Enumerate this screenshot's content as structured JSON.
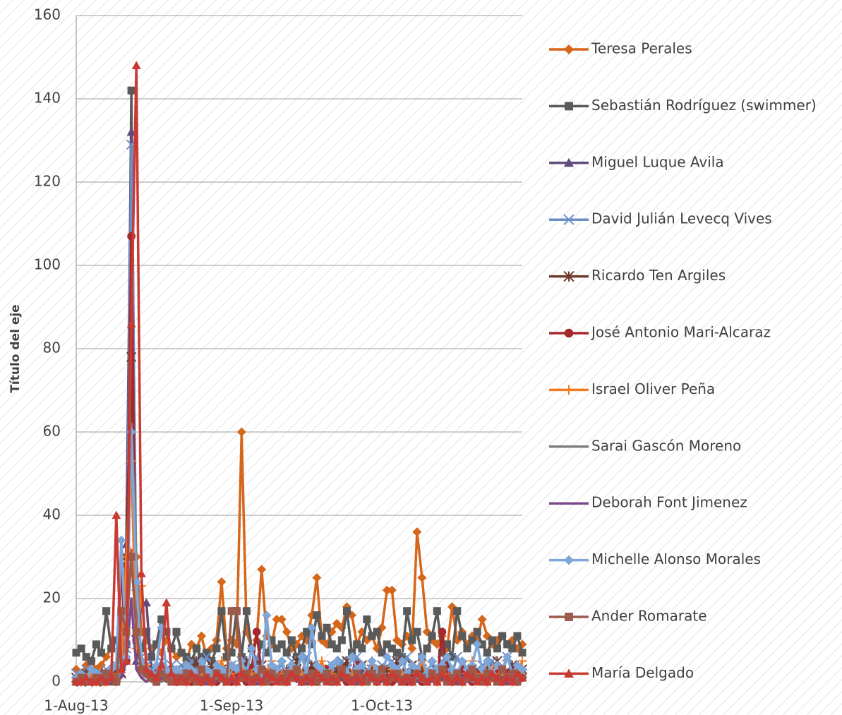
{
  "chart_data": {
    "type": "line",
    "y_label": "Título del eje",
    "x": [
      "2013-08-01",
      "2013-08-02",
      "2013-08-03",
      "2013-08-04",
      "2013-08-05",
      "2013-08-06",
      "2013-08-07",
      "2013-08-08",
      "2013-08-09",
      "2013-08-10",
      "2013-08-11",
      "2013-08-12",
      "2013-08-13",
      "2013-08-14",
      "2013-08-15",
      "2013-08-16",
      "2013-08-17",
      "2013-08-18",
      "2013-08-19",
      "2013-08-20",
      "2013-08-21",
      "2013-08-22",
      "2013-08-23",
      "2013-08-24",
      "2013-08-25",
      "2013-08-26",
      "2013-08-27",
      "2013-08-28",
      "2013-08-29",
      "2013-08-30",
      "2013-08-31",
      "2013-09-01",
      "2013-09-02",
      "2013-09-03",
      "2013-09-04",
      "2013-09-05",
      "2013-09-06",
      "2013-09-07",
      "2013-09-08",
      "2013-09-09",
      "2013-09-10",
      "2013-09-11",
      "2013-09-12",
      "2013-09-13",
      "2013-09-14",
      "2013-09-15",
      "2013-09-16",
      "2013-09-17",
      "2013-09-18",
      "2013-09-19",
      "2013-09-20",
      "2013-09-21",
      "2013-09-22",
      "2013-09-23",
      "2013-09-24",
      "2013-09-25",
      "2013-09-26",
      "2013-09-27",
      "2013-09-28",
      "2013-09-29",
      "2013-09-30",
      "2013-10-01",
      "2013-10-02",
      "2013-10-03",
      "2013-10-04",
      "2013-10-05",
      "2013-10-06",
      "2013-10-07",
      "2013-10-08",
      "2013-10-09",
      "2013-10-10",
      "2013-10-11",
      "2013-10-12",
      "2013-10-13",
      "2013-10-14",
      "2013-10-15",
      "2013-10-16",
      "2013-10-17",
      "2013-10-18",
      "2013-10-19",
      "2013-10-20",
      "2013-10-21",
      "2013-10-22",
      "2013-10-23",
      "2013-10-24",
      "2013-10-25",
      "2013-10-26",
      "2013-10-27",
      "2013-10-28",
      "2013-10-29"
    ],
    "xlim": [
      "2013-08-01",
      "2013-10-29"
    ],
    "xticks": [
      {
        "value": "2013-08-01",
        "label": "1-Aug-13"
      },
      {
        "value": "2013-09-01",
        "label": "1-Sep-13"
      },
      {
        "value": "2013-10-01",
        "label": "1-Oct-13"
      }
    ],
    "ylim": [
      0,
      160
    ],
    "yticks": [
      0,
      20,
      40,
      60,
      80,
      100,
      120,
      140,
      160
    ],
    "grid": true,
    "legend": "right",
    "series": [
      {
        "name": "Teresa Perales",
        "color": "#d5661a",
        "marker": "diamond",
        "values": [
          3,
          2,
          4,
          5,
          3,
          4,
          6,
          8,
          10,
          13,
          30,
          31,
          30,
          12,
          10,
          8,
          9,
          7,
          10,
          8,
          6,
          7,
          5,
          9,
          8,
          11,
          6,
          8,
          10,
          24,
          8,
          10,
          9,
          60,
          12,
          8,
          10,
          27,
          11,
          9,
          15,
          15,
          12,
          8,
          9,
          11,
          10,
          16,
          25,
          10,
          9,
          12,
          14,
          13,
          18,
          16,
          9,
          12,
          10,
          11,
          8,
          13,
          22,
          22,
          10,
          9,
          11,
          8,
          36,
          25,
          12,
          10,
          9,
          11,
          8,
          18,
          10,
          12,
          9,
          11,
          10,
          15,
          11,
          9,
          10,
          11,
          9,
          10,
          8,
          9
        ]
      },
      {
        "name": "Sebastián Rodríguez (swimmer)",
        "color": "#5a5a5a",
        "marker": "square",
        "values": [
          7,
          8,
          6,
          5,
          9,
          7,
          17,
          8,
          10,
          6,
          9,
          142,
          10,
          8,
          12,
          6,
          9,
          15,
          12,
          8,
          12,
          7,
          6,
          5,
          8,
          6,
          7,
          5,
          8,
          17,
          6,
          7,
          17,
          6,
          17,
          8,
          5,
          9,
          7,
          10,
          8,
          9,
          7,
          10,
          6,
          8,
          12,
          9,
          16,
          11,
          13,
          9,
          8,
          10,
          17,
          7,
          9,
          8,
          15,
          11,
          12,
          7,
          9,
          8,
          7,
          6,
          17,
          10,
          12,
          6,
          8,
          11,
          17,
          7,
          9,
          6,
          17,
          11,
          8,
          10,
          12,
          9,
          7,
          10,
          8,
          11,
          9,
          8,
          11,
          7
        ]
      },
      {
        "name": "Miguel Luque Avila",
        "color": "#604a7b",
        "marker": "triangle",
        "values": [
          0,
          1,
          0,
          1,
          0,
          2,
          1,
          0,
          1,
          2,
          33,
          132,
          5,
          19,
          19,
          3,
          2,
          1,
          2,
          1,
          1,
          2,
          0,
          1,
          3,
          1,
          0,
          2,
          1,
          1,
          1,
          2,
          0,
          1,
          3,
          1,
          0,
          2,
          1,
          1,
          1,
          2,
          0,
          1,
          3,
          1,
          0,
          2,
          1,
          1,
          1,
          2,
          0,
          1,
          3,
          1,
          0,
          2,
          1,
          1,
          1,
          2,
          0,
          1,
          3,
          1,
          0,
          2,
          1,
          1,
          1,
          2,
          0,
          1,
          3,
          1,
          0,
          2,
          1,
          1,
          1,
          2,
          0,
          1,
          3,
          1,
          0,
          2,
          1,
          1
        ]
      },
      {
        "name": "David Julián Levecq Vives",
        "color": "#6a8dc4",
        "marker": "x",
        "values": [
          2,
          1,
          3,
          2,
          1,
          2,
          3,
          2,
          4,
          5,
          8,
          129,
          23,
          6,
          4,
          3,
          2,
          5,
          3,
          4,
          3,
          4,
          2,
          5,
          3,
          2,
          6,
          4,
          3,
          2,
          3,
          4,
          2,
          5,
          3,
          2,
          6,
          4,
          3,
          2,
          3,
          4,
          2,
          5,
          3,
          2,
          6,
          4,
          3,
          2,
          3,
          4,
          2,
          5,
          3,
          2,
          6,
          4,
          3,
          2,
          3,
          4,
          2,
          5,
          3,
          2,
          6,
          4,
          3,
          2,
          3,
          4,
          2,
          5,
          3,
          2,
          6,
          4,
          3,
          2,
          3,
          4,
          2,
          5,
          3,
          2,
          6,
          4,
          3,
          2
        ]
      },
      {
        "name": "Ricardo Ten Argiles",
        "color": "#6e3b2c",
        "marker": "star",
        "values": [
          1,
          0,
          2,
          1,
          0,
          1,
          2,
          1,
          3,
          2,
          30,
          78,
          12,
          4,
          3,
          2,
          1,
          2,
          3,
          1,
          2,
          1,
          3,
          2,
          5,
          1,
          2,
          4,
          1,
          3,
          2,
          1,
          3,
          2,
          5,
          1,
          2,
          4,
          1,
          3,
          2,
          1,
          3,
          2,
          5,
          1,
          2,
          4,
          1,
          3,
          2,
          1,
          3,
          2,
          5,
          1,
          2,
          4,
          1,
          3,
          2,
          1,
          3,
          2,
          5,
          1,
          2,
          4,
          1,
          3,
          2,
          1,
          3,
          2,
          5,
          1,
          2,
          4,
          1,
          3,
          2,
          1,
          3,
          2,
          5,
          1,
          2,
          4,
          1,
          3
        ]
      },
      {
        "name": "José Antonio Mari-Alcaraz",
        "color": "#a5282c",
        "marker": "circle",
        "values": [
          0,
          1,
          0,
          0,
          1,
          0,
          2,
          1,
          0,
          28,
          5,
          107,
          10,
          3,
          2,
          1,
          0,
          1,
          2,
          1,
          0,
          1,
          2,
          0,
          1,
          0,
          3,
          1,
          0,
          2,
          1,
          0,
          2,
          1,
          0,
          3,
          12,
          2,
          1,
          0,
          2,
          1,
          0,
          3,
          1,
          0,
          2,
          1,
          0,
          1,
          3,
          0,
          1,
          2,
          0,
          1,
          4,
          0,
          1,
          2,
          0,
          3,
          1,
          0,
          2,
          1,
          0,
          1,
          2,
          0,
          1,
          2,
          0,
          12,
          1,
          0,
          2,
          3,
          1,
          0,
          2,
          1,
          0,
          1,
          3,
          0,
          2,
          1,
          0,
          1
        ]
      },
      {
        "name": "Israel Oliver Peña",
        "color": "#f47a20",
        "marker": "plus",
        "values": [
          1,
          0,
          1,
          2,
          0,
          1,
          0,
          2,
          1,
          3,
          30,
          53,
          8,
          23,
          4,
          2,
          1,
          3,
          1,
          2,
          1,
          2,
          0,
          3,
          1,
          2,
          1,
          0,
          2,
          5,
          1,
          2,
          0,
          3,
          1,
          2,
          1,
          0,
          2,
          5,
          1,
          2,
          0,
          3,
          1,
          2,
          1,
          0,
          2,
          5,
          1,
          2,
          0,
          3,
          1,
          2,
          1,
          0,
          2,
          5,
          1,
          2,
          0,
          3,
          1,
          2,
          1,
          0,
          2,
          5,
          1,
          2,
          0,
          3,
          1,
          2,
          1,
          0,
          2,
          5,
          1,
          2,
          0,
          3,
          1,
          2,
          1,
          0,
          2,
          5
        ]
      },
      {
        "name": "Sarai Gascón Moreno",
        "color": "#7f7f7f",
        "marker": "none",
        "values": [
          0,
          0,
          1,
          0,
          0,
          1,
          0,
          0,
          1,
          2,
          10,
          62,
          30,
          2,
          1,
          0,
          1,
          0,
          1,
          0,
          0,
          1,
          0,
          2,
          0,
          1,
          0,
          0,
          1,
          0,
          0,
          1,
          0,
          2,
          0,
          1,
          0,
          0,
          1,
          0,
          0,
          1,
          0,
          2,
          0,
          1,
          0,
          0,
          1,
          0,
          0,
          1,
          0,
          2,
          0,
          1,
          0,
          0,
          1,
          0,
          0,
          1,
          0,
          2,
          0,
          1,
          0,
          0,
          1,
          0,
          0,
          1,
          0,
          2,
          0,
          1,
          0,
          0,
          1,
          0,
          0,
          1,
          0,
          2,
          0,
          1,
          0,
          0,
          1,
          0
        ]
      },
      {
        "name": "Deborah Font Jimenez",
        "color": "#7a4a8c",
        "marker": "none",
        "values": [
          0,
          1,
          0,
          0,
          1,
          0,
          1,
          0,
          0,
          1,
          5,
          20,
          3,
          1,
          0,
          1,
          0,
          1,
          0,
          2,
          1,
          0,
          1,
          2,
          0,
          1,
          0,
          1,
          0,
          1,
          1,
          0,
          1,
          2,
          0,
          1,
          0,
          1,
          0,
          1,
          1,
          0,
          1,
          2,
          0,
          1,
          0,
          1,
          0,
          1,
          1,
          0,
          1,
          2,
          0,
          1,
          0,
          1,
          0,
          1,
          1,
          0,
          1,
          2,
          0,
          1,
          0,
          1,
          0,
          1,
          1,
          0,
          1,
          2,
          0,
          1,
          0,
          1,
          0,
          1,
          1,
          0,
          1,
          2,
          0,
          1,
          0,
          1,
          0,
          1
        ]
      },
      {
        "name": "Michelle Alonso Morales",
        "color": "#7ea6d8",
        "marker": "diamond",
        "values": [
          1,
          2,
          1,
          3,
          2,
          1,
          2,
          3,
          4,
          34,
          6,
          60,
          24,
          5,
          3,
          2,
          4,
          13,
          3,
          2,
          3,
          2,
          4,
          3,
          2,
          5,
          3,
          2,
          4,
          3,
          2,
          4,
          3,
          5,
          2,
          8,
          3,
          2,
          16,
          4,
          3,
          5,
          2,
          4,
          3,
          6,
          2,
          13,
          4,
          3,
          2,
          4,
          5,
          3,
          2,
          6,
          3,
          4,
          2,
          5,
          3,
          2,
          6,
          4,
          3,
          5,
          2,
          4,
          3,
          6,
          2,
          5,
          3,
          4,
          6,
          3,
          2,
          5,
          3,
          4,
          9,
          3,
          5,
          2,
          4,
          3,
          6,
          2,
          4,
          3
        ]
      },
      {
        "name": "Ander Romarate",
        "color": "#9c5a4b",
        "marker": "square",
        "values": [
          0,
          1,
          0,
          0,
          1,
          0,
          2,
          1,
          0,
          17,
          12,
          30,
          12,
          3,
          2,
          1,
          0,
          2,
          1,
          0,
          1,
          0,
          2,
          1,
          0,
          3,
          1,
          0,
          2,
          1,
          0,
          17,
          17,
          1,
          2,
          0,
          1,
          3,
          0,
          2,
          1,
          0,
          2,
          1,
          3,
          0,
          1,
          2,
          0,
          1,
          2,
          0,
          1,
          3,
          1,
          0,
          2,
          1,
          0,
          2,
          1,
          3,
          0,
          1,
          2,
          0,
          1,
          0,
          2,
          1,
          0,
          2,
          1,
          3,
          0,
          1,
          2,
          0,
          1,
          3,
          1,
          0,
          2,
          1,
          0,
          3,
          1,
          2,
          0,
          1
        ]
      },
      {
        "name": "María Delgado",
        "color": "#c83b34",
        "marker": "triangle",
        "values": [
          0,
          0,
          1,
          0,
          0,
          1,
          0,
          1,
          40,
          3,
          5,
          86,
          148,
          26,
          3,
          2,
          1,
          4,
          19,
          2,
          0,
          1,
          0,
          2,
          1,
          0,
          1,
          0,
          2,
          1,
          0,
          1,
          0,
          2,
          1,
          0,
          1,
          0,
          2,
          1,
          0,
          1,
          0,
          2,
          1,
          0,
          1,
          0,
          2,
          1,
          0,
          1,
          0,
          2,
          1,
          0,
          1,
          0,
          2,
          1,
          0,
          1,
          0,
          2,
          1,
          0,
          1,
          0,
          2,
          1,
          0,
          1,
          0,
          2,
          1,
          0,
          1,
          0,
          2,
          1,
          0,
          1,
          0,
          2,
          1,
          0,
          1,
          0,
          2,
          1
        ]
      }
    ]
  }
}
